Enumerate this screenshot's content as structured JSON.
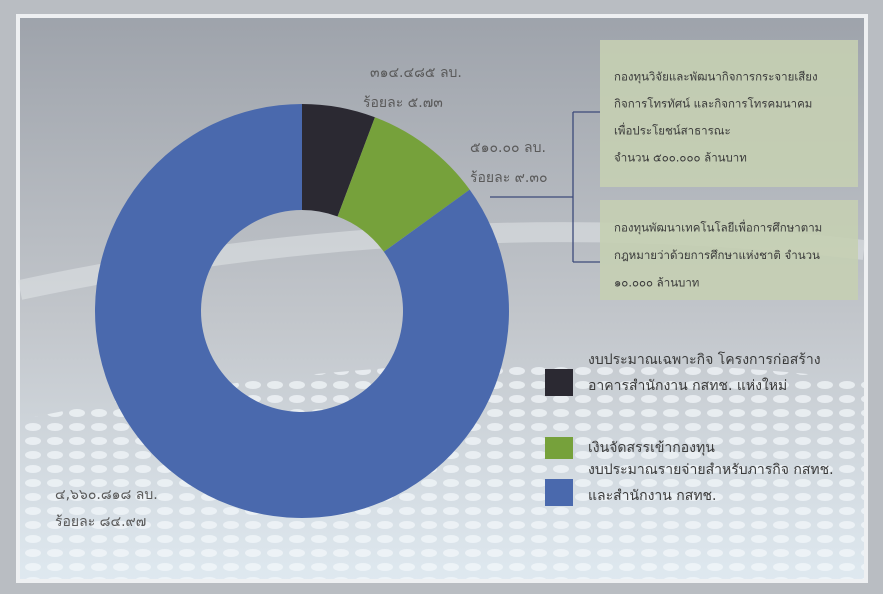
{
  "chart_data": {
    "type": "donut",
    "categories": [
      [
        "งบประมาณเฉพาะกิจ โครงการก่อสร้าง",
        "อาคารสำนักงาน กสทช. แห่งใหม่"
      ],
      [
        "เงินจัดสรรเข้ากองทุน"
      ],
      [
        "งบประมาณรายจ่ายสำหรับภารกิจ กสทช.",
        "และสำนักงาน กสทช."
      ]
    ],
    "values": [
      5.73,
      9.3,
      84.97
    ],
    "value_labels": [
      "ร้อยละ ๕.๗๓",
      "ร้อยละ ๙.๓๐",
      "ร้อยละ ๘๔.๙๗"
    ],
    "amount_labels": [
      "๓๑๔.๔๘๕ ลบ.",
      "๕๑๐.๐๐ ลบ.",
      "๔,๖๖๐.๘๑๘ ลบ."
    ],
    "colors": [
      "#2b2932",
      "#76a13b",
      "#4a69ad"
    ],
    "annotations": [
      [
        "กองทุนวิจัยและพัฒนากิจการกระจายเสียง",
        "กิจการโทรทัศน์ และกิจการโทรคมนาคม",
        "เพื่อประโยชน์สาธารณะ",
        "จำนวน ๕๐๐.๐๐๐ ล้านบาท"
      ],
      [
        "กองทุนพัฒนาเทคโนโลยีเพื่อการศึกษาตาม",
        "กฎหมายว่าด้วยการศึกษาแห่งชาติ จำนวน",
        "๑๐.๐๐๐ ล้านบาท"
      ]
    ]
  }
}
